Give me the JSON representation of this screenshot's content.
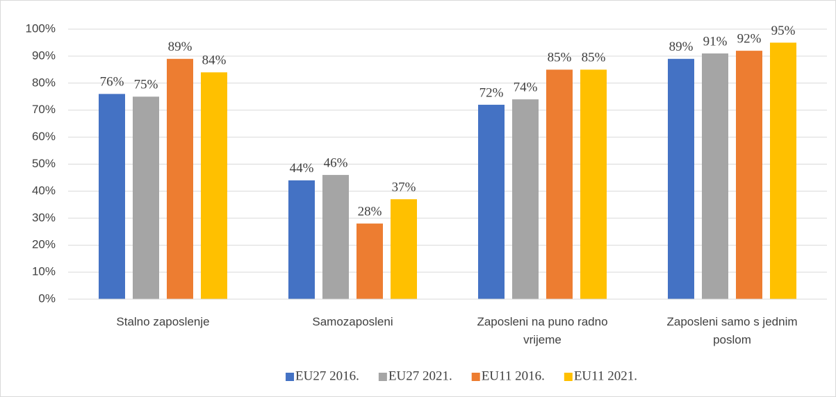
{
  "chart_data": {
    "type": "bar",
    "categories": [
      "Stalno zaposlenje",
      "Samozaposleni",
      "Zaposleni na puno radno vrijeme",
      "Zaposleni samo s jednim poslom"
    ],
    "series": [
      {
        "name": "EU27 2016.",
        "color": "#4472c4",
        "values": [
          76,
          44,
          72,
          89
        ],
        "value_labels": [
          "76%",
          "44%",
          "72%",
          "89%"
        ]
      },
      {
        "name": "EU27 2021.",
        "color": "#a5a5a5",
        "values": [
          75,
          46,
          74,
          91
        ],
        "value_labels": [
          "75%",
          "46%",
          "74%",
          "91%"
        ]
      },
      {
        "name": "EU11 2016.",
        "color": "#ed7d31",
        "values": [
          89,
          28,
          85,
          92
        ],
        "value_labels": [
          "89%",
          "28%",
          "85%",
          "92%"
        ]
      },
      {
        "name": "EU11 2021.",
        "color": "#ffc000",
        "values": [
          84,
          37,
          85,
          95
        ],
        "value_labels": [
          "84%",
          "37%",
          "85%",
          "95%"
        ]
      }
    ],
    "ylim": [
      0,
      100
    ],
    "yticks": [
      {
        "value": 0,
        "label": "0%"
      },
      {
        "value": 10,
        "label": "10%"
      },
      {
        "value": 20,
        "label": "20%"
      },
      {
        "value": 30,
        "label": "30%"
      },
      {
        "value": 40,
        "label": "40%"
      },
      {
        "value": 50,
        "label": "50%"
      },
      {
        "value": 60,
        "label": "60%"
      },
      {
        "value": 70,
        "label": "70%"
      },
      {
        "value": 80,
        "label": "80%"
      },
      {
        "value": 90,
        "label": "90%"
      },
      {
        "value": 100,
        "label": "100%"
      }
    ],
    "grid": true,
    "legend": "bottom"
  }
}
